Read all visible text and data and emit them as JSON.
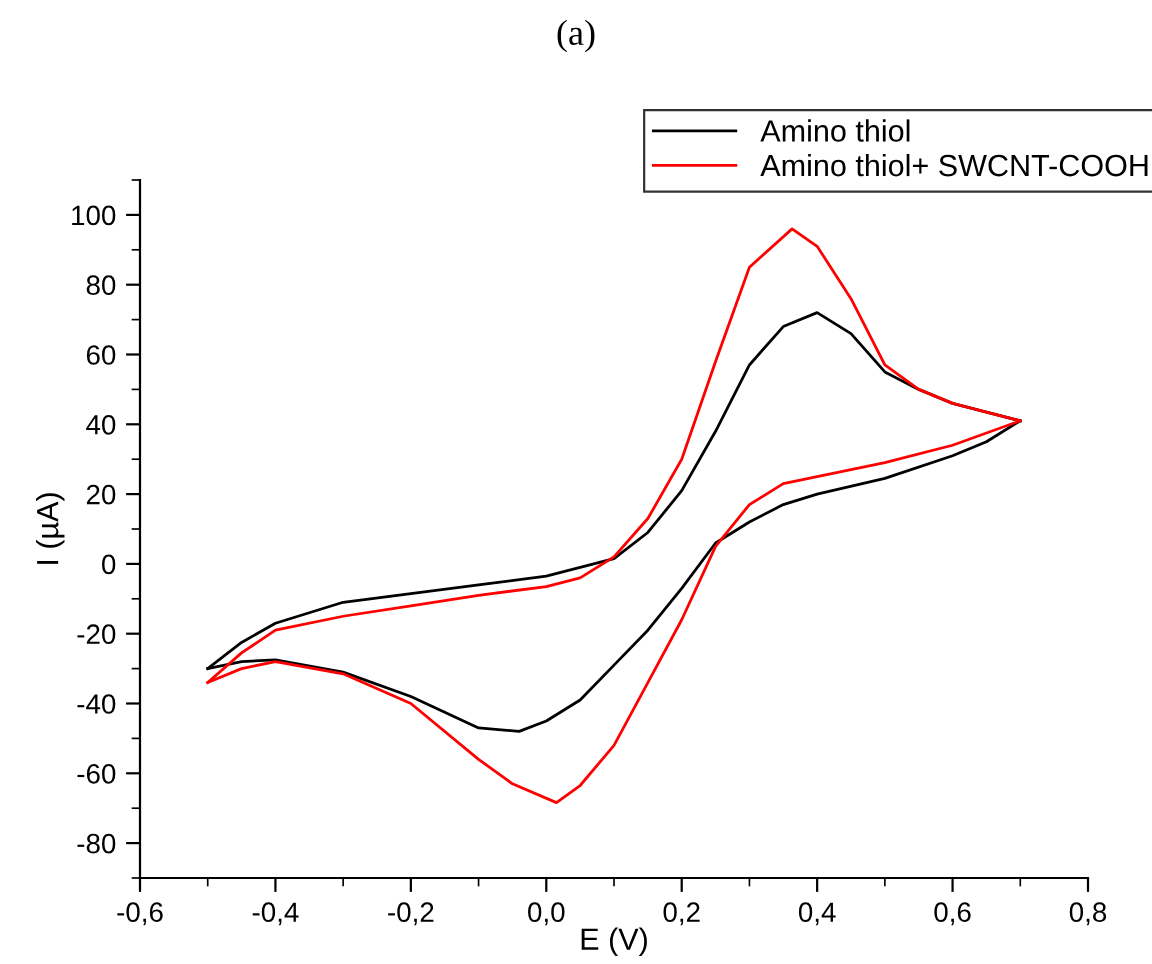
{
  "chart_data": {
    "type": "line",
    "title": "(a)",
    "xlabel": "E (V)",
    "ylabel": "I (µA)",
    "xlim": [
      -0.6,
      0.8
    ],
    "ylim": [
      -90,
      110
    ],
    "xticks": [
      {
        "value": -0.6,
        "label": "-0,6"
      },
      {
        "value": -0.5,
        "label": null
      },
      {
        "value": -0.4,
        "label": "-0,4"
      },
      {
        "value": -0.3,
        "label": null
      },
      {
        "value": -0.2,
        "label": "-0,2"
      },
      {
        "value": -0.1,
        "label": null
      },
      {
        "value": 0,
        "label": "0,0"
      },
      {
        "value": 0.1,
        "label": null
      },
      {
        "value": 0.2,
        "label": "0,2"
      },
      {
        "value": 0.3,
        "label": null
      },
      {
        "value": 0.4,
        "label": "0,4"
      },
      {
        "value": 0.5,
        "label": null
      },
      {
        "value": 0.6,
        "label": "0,6"
      },
      {
        "value": 0.7,
        "label": null
      },
      {
        "value": 0.8,
        "label": "0,8"
      }
    ],
    "yticks": [
      {
        "value": -90,
        "label": null
      },
      -80,
      {
        "value": -70,
        "label": null
      },
      -60,
      {
        "value": -50,
        "label": null
      },
      -40,
      {
        "value": -30,
        "label": null
      },
      -20,
      {
        "value": -10,
        "label": null
      },
      0,
      {
        "value": 10,
        "label": null
      },
      20,
      {
        "value": 30,
        "label": null
      },
      40,
      {
        "value": 50,
        "label": null
      },
      60,
      {
        "value": 70,
        "label": null
      },
      80,
      {
        "value": 90,
        "label": null
      },
      100,
      {
        "value": 110,
        "label": null
      }
    ],
    "grid": false,
    "legend": "top right",
    "marker": "none",
    "line_style": "solid",
    "series": [
      {
        "name": "Amino thiol",
        "color": "#000000",
        "x": [
          -0.5,
          -0.45,
          -0.4,
          -0.3,
          -0.2,
          -0.1,
          0,
          0.05,
          0.1,
          0.15,
          0.2,
          0.25,
          0.3,
          0.35,
          0.4,
          0.45,
          0.5,
          0.55,
          0.6,
          0.65,
          0.7
        ],
        "values": [
          -30,
          -22.5,
          -17,
          -11,
          -8.5,
          -6,
          -3.5,
          -1,
          1.5,
          9,
          21,
          38,
          57,
          68,
          72,
          66,
          55,
          50,
          46,
          43.5,
          41
        ]
      },
      {
        "color": "#000000",
        "x": [
          0.7,
          0.65,
          0.6,
          0.5,
          0.4,
          0.35,
          0.3,
          0.25,
          0.2,
          0.15,
          0.1,
          0.05,
          0,
          -0.04,
          -0.1,
          -0.2,
          -0.3,
          -0.4,
          -0.45,
          -0.5
        ],
        "values": [
          41,
          35,
          31,
          24.5,
          20,
          17,
          12,
          6,
          -7,
          -19,
          -29,
          -39,
          -45,
          -48,
          -47,
          -38,
          -31,
          -27.5,
          -28,
          -30
        ]
      },
      {
        "name": "Amino thiol+ SWCNT-COOH",
        "color": "#ff0000",
        "x": [
          -0.5,
          -0.45,
          -0.4,
          -0.3,
          -0.2,
          -0.1,
          0,
          0.05,
          0.1,
          0.15,
          0.2,
          0.25,
          0.3,
          0.363,
          0.4,
          0.45,
          0.5,
          0.55,
          0.6,
          0.65,
          0.7
        ],
        "values": [
          -34,
          -25.5,
          -19,
          -15,
          -12,
          -9,
          -6.5,
          -4,
          2,
          13,
          30,
          58,
          85,
          96,
          91,
          76,
          57,
          50,
          46,
          43.5,
          41
        ]
      },
      {
        "color": "#ff0000",
        "x": [
          0.7,
          0.6,
          0.5,
          0.4,
          0.35,
          0.3,
          0.25,
          0.2,
          0.15,
          0.1,
          0.05,
          0.015,
          -0.05,
          -0.1,
          -0.2,
          -0.3,
          -0.4,
          -0.45,
          -0.5
        ],
        "values": [
          41,
          34,
          29,
          25,
          23,
          17,
          5,
          -16,
          -34,
          -52,
          -63.5,
          -68.4,
          -63,
          -56,
          -40,
          -31.5,
          -28,
          -30,
          -34
        ]
      }
    ]
  }
}
